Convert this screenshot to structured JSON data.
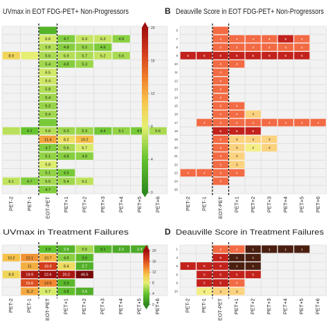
{
  "chart_data": [
    {
      "type": "heatmap",
      "panel_label": "",
      "title": "UVmax in EOT FDG-PET+ Non-Progressors",
      "columns": [
        "PET-2",
        "PET-1",
        "EOT-PET",
        "PET+1",
        "PET+2",
        "PET+3",
        "PET+4",
        "PET+5",
        "PET+6"
      ],
      "row_labels": [],
      "colorbar": {
        "ticks": [
          20,
          16,
          12,
          8,
          4,
          0
        ],
        "low_color": "#2e9a1e",
        "mid_color": "#e9f07a",
        "high_color": "#b51010"
      },
      "cells": [
        {
          "r": 0,
          "c": 2,
          "v": "",
          "shade": 3
        },
        {
          "r": 1,
          "c": 2,
          "v": "6.6",
          "shade": 6.6
        },
        {
          "r": 1,
          "c": 3,
          "v": "4.7",
          "shade": 4.7
        },
        {
          "r": 1,
          "c": 4,
          "v": "6.3",
          "shade": 6.3
        },
        {
          "r": 1,
          "c": 5,
          "v": "6.3",
          "shade": 6.3
        },
        {
          "r": 1,
          "c": 6,
          "v": "4.9",
          "shade": 4.9
        },
        {
          "r": 2,
          "c": 2,
          "v": "5.8",
          "shade": 5.8
        },
        {
          "r": 2,
          "c": 3,
          "v": "4.8",
          "shade": 4.8
        },
        {
          "r": 2,
          "c": 4,
          "v": "5.2",
          "shade": 5.2
        },
        {
          "r": 2,
          "c": 5,
          "v": "4.6",
          "shade": 4.6
        },
        {
          "r": 3,
          "c": 0,
          "v": "8.9",
          "shade": 8.9
        },
        {
          "r": 3,
          "c": 1,
          "v": "",
          "shade": 7
        },
        {
          "r": 3,
          "c": 2,
          "v": "5.6",
          "shade": 5.6
        },
        {
          "r": 3,
          "c": 3,
          "v": "5.9",
          "shade": 5.9
        },
        {
          "r": 3,
          "c": 4,
          "v": "5.7",
          "shade": 5.7
        },
        {
          "r": 3,
          "c": 5,
          "v": "6.2",
          "shade": 6.2
        },
        {
          "r": 3,
          "c": 6,
          "v": "5.6",
          "shade": 5.6
        },
        {
          "r": 4,
          "c": 2,
          "v": "5.4",
          "shade": 5.4
        },
        {
          "r": 4,
          "c": 3,
          "v": "4.8",
          "shade": 4.8
        },
        {
          "r": 4,
          "c": 4,
          "v": "5.3",
          "shade": 5.3
        },
        {
          "r": 5,
          "c": 2,
          "v": "6.5",
          "shade": 6.5
        },
        {
          "r": 6,
          "c": 2,
          "v": "6.4",
          "shade": 6.4
        },
        {
          "r": 7,
          "c": 2,
          "v": "5.8",
          "shade": 5.8
        },
        {
          "r": 8,
          "c": 2,
          "v": "5.4",
          "shade": 5.4
        },
        {
          "r": 9,
          "c": 2,
          "v": "5.2",
          "shade": 5.2
        },
        {
          "r": 10,
          "c": 2,
          "v": "5.4",
          "shade": 5.4
        },
        {
          "r": 11,
          "c": 2,
          "v": "",
          "shade": 4.5
        },
        {
          "r": 12,
          "c": 0,
          "v": "",
          "shade": 6
        },
        {
          "r": 12,
          "c": 1,
          "v": "4.1",
          "shade": 4.1
        },
        {
          "r": 12,
          "c": 2,
          "v": "5.8",
          "shade": 5.8
        },
        {
          "r": 12,
          "c": 3,
          "v": "5.3",
          "shade": 5.3
        },
        {
          "r": 12,
          "c": 4,
          "v": "5.3",
          "shade": 5.3
        },
        {
          "r": 12,
          "c": 5,
          "v": "4.4",
          "shade": 4.4
        },
        {
          "r": 12,
          "c": 6,
          "v": "5.1",
          "shade": 5.1
        },
        {
          "r": 12,
          "c": 7,
          "v": "4.5",
          "shade": 4.5
        },
        {
          "r": 12,
          "c": 8,
          "v": "5.6",
          "shade": 5.6
        },
        {
          "r": 13,
          "c": 2,
          "v": "11.4",
          "shade": 11.4
        },
        {
          "r": 13,
          "c": 3,
          "v": "8.2",
          "shade": 8.2
        },
        {
          "r": 13,
          "c": 4,
          "v": "10.2",
          "shade": 10.2
        },
        {
          "r": 14,
          "c": 2,
          "v": "4.7",
          "shade": 4.7
        },
        {
          "r": 14,
          "c": 3,
          "v": "5.6",
          "shade": 5.6
        },
        {
          "r": 14,
          "c": 4,
          "v": "6.7",
          "shade": 6.7
        },
        {
          "r": 15,
          "c": 2,
          "v": "5.1",
          "shade": 5.1
        },
        {
          "r": 15,
          "c": 3,
          "v": "4.8",
          "shade": 4.8
        },
        {
          "r": 15,
          "c": 4,
          "v": "4.9",
          "shade": 4.9
        },
        {
          "r": 16,
          "c": 2,
          "v": "6.8",
          "shade": 6.8
        },
        {
          "r": 17,
          "c": 2,
          "v": "5.1",
          "shade": 5.1
        },
        {
          "r": 17,
          "c": 3,
          "v": "4.5",
          "shade": 4.5
        },
        {
          "r": 18,
          "c": 0,
          "v": "6.1",
          "shade": 6.1
        },
        {
          "r": 18,
          "c": 1,
          "v": "4.7",
          "shade": 4.7
        },
        {
          "r": 18,
          "c": 2,
          "v": "5.5",
          "shade": 5.5
        },
        {
          "r": 18,
          "c": 3,
          "v": "5.4",
          "shade": 5.4
        },
        {
          "r": 18,
          "c": 4,
          "v": "6.1",
          "shade": 6.1
        },
        {
          "r": 19,
          "c": 2,
          "v": "4.7",
          "shade": 4.7
        }
      ]
    },
    {
      "type": "heatmap",
      "panel_label": "B",
      "title": "Deauville Score in EOT FDG-PET+ Non-Progressors",
      "columns": [
        "PET-2",
        "PET-1",
        "EOT-PET",
        "PET+1",
        "PET+2",
        "PET+3",
        "PET+4",
        "PET+5",
        "PET+6"
      ],
      "row_labels": [
        "5",
        "7",
        "8",
        "9",
        "10",
        "11",
        "12",
        "13",
        "14",
        "15",
        "16",
        "17",
        "18",
        "19",
        "20",
        "21",
        "22",
        "23",
        "24",
        "25"
      ],
      "cells": [
        {
          "r": 0,
          "c": 2,
          "v": "",
          "shade": 4
        },
        {
          "r": 1,
          "c": 2,
          "v": "4",
          "shade": 4
        },
        {
          "r": 1,
          "c": 3,
          "v": "4",
          "shade": 4
        },
        {
          "r": 1,
          "c": 4,
          "v": "4",
          "shade": 4
        },
        {
          "r": 1,
          "c": 5,
          "v": "4",
          "shade": 4
        },
        {
          "r": 1,
          "c": 6,
          "v": "5",
          "shade": 5
        },
        {
          "r": 1,
          "c": 7,
          "v": "4",
          "shade": 4
        },
        {
          "r": 2,
          "c": 2,
          "v": "4",
          "shade": 4
        },
        {
          "r": 2,
          "c": 3,
          "v": "4",
          "shade": 4
        },
        {
          "r": 2,
          "c": 4,
          "v": "4",
          "shade": 4
        },
        {
          "r": 2,
          "c": 5,
          "v": "4",
          "shade": 4
        },
        {
          "r": 2,
          "c": 6,
          "v": "4",
          "shade": 4
        },
        {
          "r": 2,
          "c": 7,
          "v": "4",
          "shade": 4
        },
        {
          "r": 3,
          "c": 0,
          "v": "5",
          "shade": 5
        },
        {
          "r": 3,
          "c": 1,
          "v": "5",
          "shade": 5
        },
        {
          "r": 3,
          "c": 2,
          "v": "5",
          "shade": 5
        },
        {
          "r": 3,
          "c": 3,
          "v": "5",
          "shade": 5
        },
        {
          "r": 3,
          "c": 4,
          "v": "5",
          "shade": 5
        },
        {
          "r": 3,
          "c": 5,
          "v": "5",
          "shade": 5
        },
        {
          "r": 3,
          "c": 6,
          "v": "5",
          "shade": 5
        },
        {
          "r": 3,
          "c": 7,
          "v": "5",
          "shade": 5
        },
        {
          "r": 4,
          "c": 2,
          "v": "4",
          "shade": 4
        },
        {
          "r": 4,
          "c": 3,
          "v": "4",
          "shade": 4
        },
        {
          "r": 5,
          "c": 2,
          "v": "4",
          "shade": 4
        },
        {
          "r": 6,
          "c": 2,
          "v": "4",
          "shade": 4
        },
        {
          "r": 7,
          "c": 2,
          "v": "4",
          "shade": 4
        },
        {
          "r": 8,
          "c": 2,
          "v": "4",
          "shade": 4
        },
        {
          "r": 9,
          "c": 2,
          "v": "4",
          "shade": 4
        },
        {
          "r": 9,
          "c": 3,
          "v": "4",
          "shade": 4
        },
        {
          "r": 10,
          "c": 2,
          "v": "4",
          "shade": 4
        },
        {
          "r": 10,
          "c": 3,
          "v": "4",
          "shade": 4
        },
        {
          "r": 10,
          "c": 4,
          "v": "3",
          "shade": 3
        },
        {
          "r": 11,
          "c": 1,
          "v": "4",
          "shade": 4
        },
        {
          "r": 11,
          "c": 2,
          "v": "4",
          "shade": 4
        },
        {
          "r": 11,
          "c": 3,
          "v": "4",
          "shade": 4
        },
        {
          "r": 11,
          "c": 4,
          "v": "4",
          "shade": 4
        },
        {
          "r": 11,
          "c": 5,
          "v": "4",
          "shade": 4
        },
        {
          "r": 11,
          "c": 6,
          "v": "4",
          "shade": 4
        },
        {
          "r": 11,
          "c": 7,
          "v": "4",
          "shade": 4
        },
        {
          "r": 11,
          "c": 8,
          "v": "4",
          "shade": 4
        },
        {
          "r": 12,
          "c": 2,
          "v": "5",
          "shade": 5
        },
        {
          "r": 12,
          "c": 3,
          "v": "5",
          "shade": 5
        },
        {
          "r": 12,
          "c": 4,
          "v": "5",
          "shade": 5
        },
        {
          "r": 13,
          "c": 2,
          "v": "4",
          "shade": 4
        },
        {
          "r": 13,
          "c": 3,
          "v": "3",
          "shade": 3
        },
        {
          "r": 13,
          "c": 4,
          "v": "3",
          "shade": 3
        },
        {
          "r": 13,
          "c": 5,
          "v": "3",
          "shade": 3
        },
        {
          "r": 14,
          "c": 2,
          "v": "4",
          "shade": 4
        },
        {
          "r": 14,
          "c": 3,
          "v": "3",
          "shade": 3
        },
        {
          "r": 14,
          "c": 4,
          "v": "2",
          "shade": 2
        },
        {
          "r": 14,
          "c": 5,
          "v": "3",
          "shade": 3
        },
        {
          "r": 15,
          "c": 2,
          "v": "4",
          "shade": 4
        },
        {
          "r": 15,
          "c": 3,
          "v": "3",
          "shade": 3
        },
        {
          "r": 16,
          "c": 2,
          "v": "4",
          "shade": 4
        },
        {
          "r": 16,
          "c": 3,
          "v": "3",
          "shade": 3
        },
        {
          "r": 17,
          "c": 0,
          "v": "4",
          "shade": 4
        },
        {
          "r": 17,
          "c": 1,
          "v": "4",
          "shade": 4
        },
        {
          "r": 17,
          "c": 2,
          "v": "4",
          "shade": 4
        },
        {
          "r": 17,
          "c": 3,
          "v": "4",
          "shade": 4
        },
        {
          "r": 18,
          "c": 2,
          "v": "4",
          "shade": 4
        }
      ]
    },
    {
      "type": "heatmap",
      "panel_label": "",
      "title": "UVmax in Treatment Failures",
      "columns": [
        "PET-2",
        "PET-1",
        "EOT-PET",
        "PET+1",
        "PET+2",
        "PET+3",
        "PET+4",
        "PET+5",
        "PET+6"
      ],
      "row_labels": [],
      "colorbar": {
        "ticks": [
          20,
          16,
          12,
          8,
          4,
          0
        ],
        "low_color": "#2e9a1e",
        "mid_color": "#e9f07a",
        "high_color": "#b51010"
      },
      "cells": [
        {
          "r": 0,
          "c": 2,
          "v": "3.9",
          "shade": 3.9
        },
        {
          "r": 0,
          "c": 3,
          "v": "2.9",
          "shade": 2.9
        },
        {
          "r": 0,
          "c": 4,
          "v": "5.5",
          "shade": 5.5
        },
        {
          "r": 0,
          "c": 5,
          "v": "3.1",
          "shade": 3.1
        },
        {
          "r": 0,
          "c": 6,
          "v": "2.2",
          "shade": 2.2
        },
        {
          "r": 0,
          "c": 7,
          "v": "2.3",
          "shade": 2.3
        },
        {
          "r": 1,
          "c": 0,
          "v": "10.2",
          "shade": 10.2
        },
        {
          "r": 1,
          "c": 1,
          "v": "12.1",
          "shade": 12.1
        },
        {
          "r": 1,
          "c": 2,
          "v": "10.7",
          "shade": 10.7
        },
        {
          "r": 1,
          "c": 3,
          "v": "4.9",
          "shade": 4.9
        },
        {
          "r": 1,
          "c": 4,
          "v": "3.6",
          "shade": 3.6
        },
        {
          "r": 2,
          "c": 1,
          "v": "11",
          "shade": 11
        },
        {
          "r": 2,
          "c": 2,
          "v": "16.9",
          "shade": 16.9
        },
        {
          "r": 2,
          "c": 3,
          "v": "8.4",
          "shade": 8.4
        },
        {
          "r": 2,
          "c": 4,
          "v": "2.7",
          "shade": 2.7
        },
        {
          "r": 3,
          "c": 0,
          "v": "8.9",
          "shade": 8.9
        },
        {
          "r": 3,
          "c": 1,
          "v": "19.9",
          "shade": 19.9
        },
        {
          "r": 3,
          "c": 2,
          "v": "22.6",
          "shade": 22.6
        },
        {
          "r": 3,
          "c": 3,
          "v": "20.2",
          "shade": 20.2
        },
        {
          "r": 3,
          "c": 4,
          "v": "40.5",
          "shade": 40.5
        },
        {
          "r": 4,
          "c": 1,
          "v": "15.6",
          "shade": 15.6
        },
        {
          "r": 4,
          "c": 2,
          "v": "12.5",
          "shade": 12.5
        },
        {
          "r": 4,
          "c": 3,
          "v": "3.3",
          "shade": 3.3
        },
        {
          "r": 5,
          "c": 1,
          "v": "11.2",
          "shade": 11.2
        },
        {
          "r": 5,
          "c": 2,
          "v": "6.7",
          "shade": 6.7
        },
        {
          "r": 5,
          "c": 3,
          "v": "3.8",
          "shade": 3.8
        },
        {
          "r": 5,
          "c": 4,
          "v": "2.6",
          "shade": 2.6
        }
      ]
    },
    {
      "type": "heatmap",
      "panel_label": "D",
      "title": "Deauville Score in Treatment Failures",
      "columns": [
        "PET-2",
        "PET-1",
        "EOT-PET",
        "PET+1",
        "PET+2",
        "PET+3",
        "PET+4",
        "PET+5",
        "PET+6"
      ],
      "row_labels": [
        "1",
        "3",
        "5",
        "6",
        "8",
        "10"
      ],
      "cells": [
        {
          "r": 0,
          "c": 2,
          "v": "4",
          "shade": 4
        },
        {
          "r": 0,
          "c": 3,
          "v": "4",
          "shade": 4
        },
        {
          "r": 0,
          "c": 4,
          "v": "1",
          "shade": 1
        },
        {
          "r": 0,
          "c": 5,
          "v": "1",
          "shade": 1
        },
        {
          "r": 0,
          "c": 6,
          "v": "1",
          "shade": 1
        },
        {
          "r": 0,
          "c": 7,
          "v": "1",
          "shade": 1
        },
        {
          "r": 1,
          "c": 2,
          "v": "5",
          "shade": 5
        },
        {
          "r": 1,
          "c": 3,
          "v": "1",
          "shade": 1
        },
        {
          "r": 1,
          "c": 4,
          "v": "1",
          "shade": 1
        },
        {
          "r": 2,
          "c": 0,
          "v": "5",
          "shade": 5
        },
        {
          "r": 2,
          "c": 1,
          "v": "5",
          "shade": 5
        },
        {
          "r": 2,
          "c": 2,
          "v": "5",
          "shade": 5
        },
        {
          "r": 2,
          "c": 3,
          "v": "1",
          "shade": 1
        },
        {
          "r": 2,
          "c": 4,
          "v": "1",
          "shade": 1
        },
        {
          "r": 3,
          "c": 1,
          "v": "5",
          "shade": 5
        },
        {
          "r": 3,
          "c": 2,
          "v": "5",
          "shade": 5
        },
        {
          "r": 3,
          "c": 3,
          "v": "5",
          "shade": 5
        },
        {
          "r": 3,
          "c": 4,
          "v": "5",
          "shade": 5
        },
        {
          "r": 4,
          "c": 1,
          "v": "5",
          "shade": 5
        },
        {
          "r": 4,
          "c": 2,
          "v": "5",
          "shade": 5
        },
        {
          "r": 4,
          "c": 3,
          "v": "4",
          "shade": 4
        },
        {
          "r": 5,
          "c": 1,
          "v": "2",
          "shade": 2
        },
        {
          "r": 5,
          "c": 2,
          "v": "3",
          "shade": 3
        },
        {
          "r": 5,
          "c": 3,
          "v": "3",
          "shade": 3
        }
      ]
    }
  ]
}
